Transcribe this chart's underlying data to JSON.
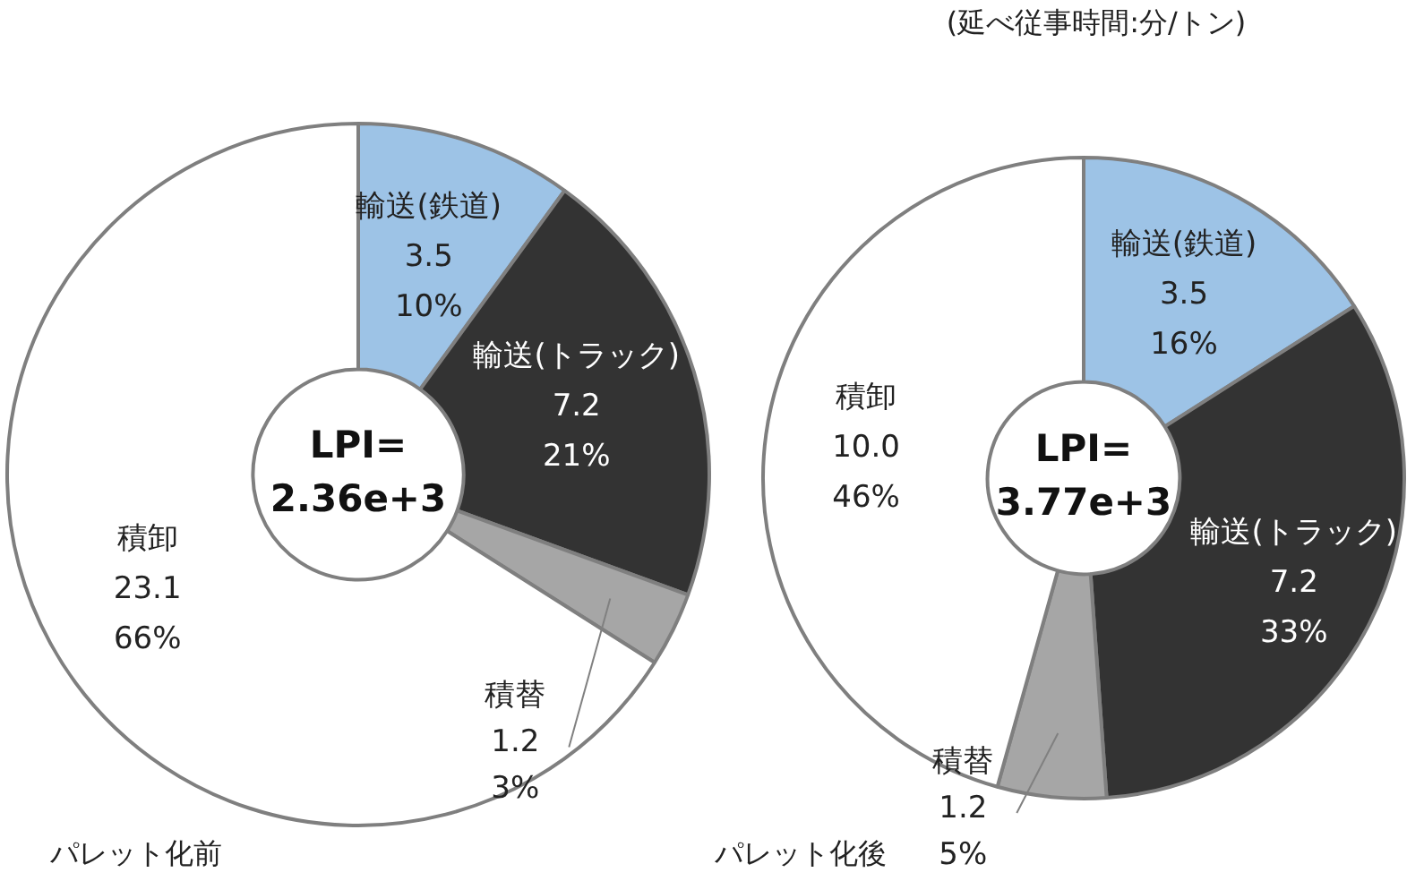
{
  "chart_data": [
    {
      "type": "donut",
      "title": "パレット化前",
      "categories": [
        "輸送(鉄道)",
        "輸送(トラック)",
        "積替",
        "積卸"
      ],
      "values": [
        3.5,
        7.2,
        1.2,
        23.1
      ],
      "colors": [
        "#9dc3e6",
        "#333333",
        "#a6a6a6",
        "#ffffff"
      ],
      "value_labels": [
        "3.5\n10%",
        "7.2\n21%",
        "1.2\n3%",
        "23.1\n66%"
      ],
      "annotations": [
        "LPI=\n2.36e+3"
      ]
    },
    {
      "type": "donut",
      "title": "パレット化後",
      "categories": [
        "輸送(鉄道)",
        "輸送(トラック)",
        "積替",
        "積卸"
      ],
      "values": [
        3.5,
        7.2,
        1.2,
        10.0
      ],
      "colors": [
        "#9dc3e6",
        "#333333",
        "#a6a6a6",
        "#ffffff"
      ],
      "value_labels": [
        "3.5\n16%",
        "7.2\n33%",
        "1.2\n5%",
        "10.0\n46%"
      ],
      "annotations": [
        "LPI=\n3.77e+3"
      ],
      "subtitle": "(延べ従事時間:分/トン)"
    }
  ]
}
